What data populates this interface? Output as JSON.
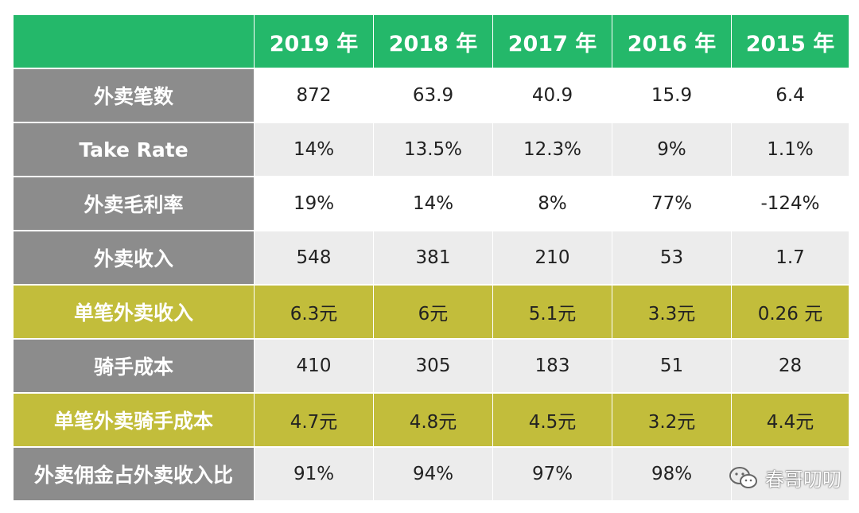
{
  "header": {
    "corner": "",
    "years": [
      "2019 年",
      "2018 年",
      "2017 年",
      "2016 年",
      "2015 年"
    ]
  },
  "rows": [
    {
      "label": "外卖笔数",
      "values": [
        "872",
        "63.9",
        "40.9",
        "15.9",
        "6.4"
      ]
    },
    {
      "label": "Take Rate",
      "values": [
        "14%",
        "13.5%",
        "12.3%",
        "9%",
        "1.1%"
      ]
    },
    {
      "label": "外卖毛利率",
      "values": [
        "19%",
        "14%",
        "8%",
        "77%",
        "-124%"
      ]
    },
    {
      "label": "外卖收入",
      "values": [
        "548",
        "381",
        "210",
        "53",
        "1.7"
      ]
    },
    {
      "label": "单笔外卖收入",
      "values": [
        "6.3元",
        "6元",
        "5.1元",
        "3.3元",
        "0.26 元"
      ]
    },
    {
      "label": "骑手成本",
      "values": [
        "410",
        "305",
        "183",
        "51",
        "28"
      ]
    },
    {
      "label": "单笔外卖骑手成本",
      "values": [
        "4.7元",
        "4.8元",
        "4.5元",
        "3.2元",
        "4.4元"
      ]
    },
    {
      "label": "外卖佣金占外卖收入比",
      "values": [
        "91%",
        "94%",
        "97%",
        "98%",
        ""
      ]
    }
  ],
  "watermark": {
    "text": "春哥叨叨",
    "icon": "wechat-icon"
  },
  "colors": {
    "header_green": "#24b86a",
    "label_gray": "#8c8c8c",
    "highlight_olive": "#c2bd3b",
    "row_gray": "#ececec"
  }
}
